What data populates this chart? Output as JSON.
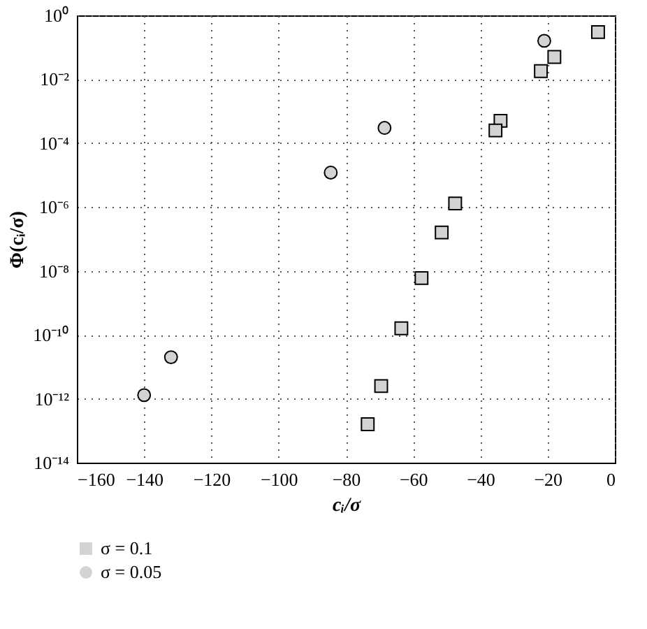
{
  "chart_data": {
    "type": "scatter",
    "xlabel": "cᵢ/σ",
    "ylabel": "Φ(cᵢ/σ)",
    "log": "y",
    "grid": true,
    "legend": "bottom",
    "xlim": [
      -160,
      0
    ],
    "xticks": [
      -160,
      -140,
      -120,
      -100,
      -80,
      -60,
      -40,
      -20,
      0
    ],
    "ylim": [
      1e-14,
      1
    ],
    "yticks": [
      {
        "value": 1e-14,
        "label": "10⁻¹⁴"
      },
      {
        "value": 1e-12,
        "label": "10⁻¹²"
      },
      {
        "value": 1e-10,
        "label": "10⁻¹⁰"
      },
      {
        "value": 1e-08,
        "label": "10⁻⁸"
      },
      {
        "value": 1e-06,
        "label": "10⁻⁶"
      },
      {
        "value": 0.0001,
        "label": "10⁻⁴"
      },
      {
        "value": 0.01,
        "label": "10⁻²"
      },
      {
        "value": 1,
        "label": "10⁰"
      }
    ],
    "series": [
      {
        "name": "σ = 0.1",
        "color": "#d3d3d3",
        "marker": "square",
        "x": [
          -5,
          -18,
          -22,
          -34,
          -35.5,
          -47.5,
          -51.5,
          -57.5,
          -63.5,
          -69.5,
          -73.5
        ],
        "values": [
          0.3,
          0.05,
          0.018,
          0.0005,
          0.00025,
          1.3e-06,
          1.6e-07,
          6e-09,
          1.6e-10,
          2.5e-12,
          1.6e-13
        ]
      },
      {
        "name": "σ = 0.05",
        "color": "#d3d3d3",
        "marker": "circle",
        "x": [
          -21,
          -68.5,
          -84.5,
          -132,
          -140
        ],
        "values": [
          0.16,
          0.0003,
          1.2e-05,
          2e-11,
          1.3e-12
        ]
      }
    ]
  }
}
